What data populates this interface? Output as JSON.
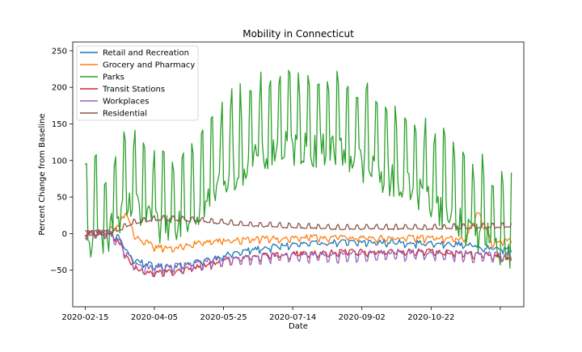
{
  "chart_data": {
    "type": "line",
    "title": "Mobility in Connecticut",
    "xlabel": "Date",
    "ylabel": "Percent Change from Baseline",
    "x_start": "2020-02-15",
    "x_end": "2020-12-19",
    "xlim": [
      "2020-02-06",
      "2020-12-28"
    ],
    "ylim": [
      -100,
      262
    ],
    "x_ticks": [
      "2020-02-15",
      "2020-04-05",
      "2020-05-25",
      "2020-07-14",
      "2020-09-02",
      "2020-10-22",
      ""
    ],
    "y_ticks": [
      -50,
      0,
      50,
      100,
      150,
      200,
      250
    ],
    "grid": false,
    "legend_position": "upper left",
    "series": [
      {
        "name": "Retail and Recreation",
        "color": "#1f77b4",
        "x": [
          "2020-02-15",
          "2020-03-01",
          "2020-03-10",
          "2020-03-20",
          "2020-04-05",
          "2020-04-20",
          "2020-05-10",
          "2020-05-25",
          "2020-06-15",
          "2020-07-14",
          "2020-08-15",
          "2020-09-02",
          "2020-10-01",
          "2020-10-22",
          "2020-11-15",
          "2020-12-05",
          "2020-12-19"
        ],
        "y": [
          0,
          2,
          -5,
          -35,
          -45,
          -45,
          -38,
          -30,
          -22,
          -15,
          -12,
          -12,
          -12,
          -14,
          -15,
          -20,
          -22
        ]
      },
      {
        "name": "Grocery and Pharmacy",
        "color": "#ff7f0e",
        "x": [
          "2020-02-15",
          "2020-03-01",
          "2020-03-10",
          "2020-03-15",
          "2020-03-22",
          "2020-04-05",
          "2020-04-20",
          "2020-05-10",
          "2020-05-25",
          "2020-06-15",
          "2020-07-14",
          "2020-08-15",
          "2020-09-02",
          "2020-10-01",
          "2020-10-22",
          "2020-11-15",
          "2020-11-25",
          "2020-12-05",
          "2020-12-19"
        ],
        "y": [
          0,
          2,
          10,
          30,
          -5,
          -18,
          -20,
          -12,
          -10,
          -8,
          -6,
          -5,
          -6,
          -6,
          -6,
          -8,
          28,
          -12,
          -10
        ]
      },
      {
        "name": "Parks",
        "color": "#2ca02c",
        "x": [
          "2020-02-15",
          "2020-03-01",
          "2020-03-10",
          "2020-03-20",
          "2020-04-05",
          "2020-04-20",
          "2020-05-01",
          "2020-05-15",
          "2020-05-25",
          "2020-06-15",
          "2020-07-04",
          "2020-07-14",
          "2020-08-01",
          "2020-08-15",
          "2020-09-02",
          "2020-09-20",
          "2020-10-01",
          "2020-10-22",
          "2020-11-10",
          "2020-11-25",
          "2020-12-19"
        ],
        "y": [
          10,
          20,
          40,
          60,
          30,
          40,
          50,
          70,
          100,
          120,
          140,
          140,
          140,
          140,
          120,
          100,
          90,
          70,
          40,
          20,
          0
        ]
      },
      {
        "name": "Transit Stations",
        "color": "#d62728",
        "x": [
          "2020-02-15",
          "2020-03-01",
          "2020-03-10",
          "2020-03-20",
          "2020-04-01",
          "2020-04-20",
          "2020-05-10",
          "2020-05-25",
          "2020-06-15",
          "2020-07-14",
          "2020-08-15",
          "2020-09-02",
          "2020-10-01",
          "2020-10-22",
          "2020-11-15",
          "2020-12-05",
          "2020-12-19"
        ],
        "y": [
          0,
          2,
          -10,
          -45,
          -55,
          -52,
          -45,
          -38,
          -32,
          -28,
          -26,
          -25,
          -24,
          -25,
          -27,
          -30,
          -35
        ]
      },
      {
        "name": "Workplaces",
        "color": "#9467bd",
        "x": [
          "2020-02-15",
          "2020-03-01",
          "2020-03-10",
          "2020-03-20",
          "2020-04-01",
          "2020-04-20",
          "2020-05-10",
          "2020-05-25",
          "2020-06-15",
          "2020-07-14",
          "2020-08-15",
          "2020-09-02",
          "2020-10-01",
          "2020-10-22",
          "2020-11-15",
          "2020-12-05",
          "2020-12-19"
        ],
        "y": [
          0,
          2,
          -10,
          -40,
          -48,
          -46,
          -40,
          -36,
          -32,
          -30,
          -30,
          -28,
          -27,
          -27,
          -28,
          -30,
          -30
        ]
      },
      {
        "name": "Residential",
        "color": "#8c564b",
        "x": [
          "2020-02-15",
          "2020-03-01",
          "2020-03-10",
          "2020-03-20",
          "2020-04-05",
          "2020-04-20",
          "2020-05-10",
          "2020-05-25",
          "2020-06-15",
          "2020-07-14",
          "2020-08-15",
          "2020-09-02",
          "2020-10-01",
          "2020-10-22",
          "2020-11-15",
          "2020-12-05",
          "2020-12-19"
        ],
        "y": [
          0,
          0,
          5,
          15,
          20,
          20,
          18,
          15,
          12,
          10,
          8,
          8,
          8,
          8,
          9,
          10,
          11
        ]
      }
    ]
  }
}
